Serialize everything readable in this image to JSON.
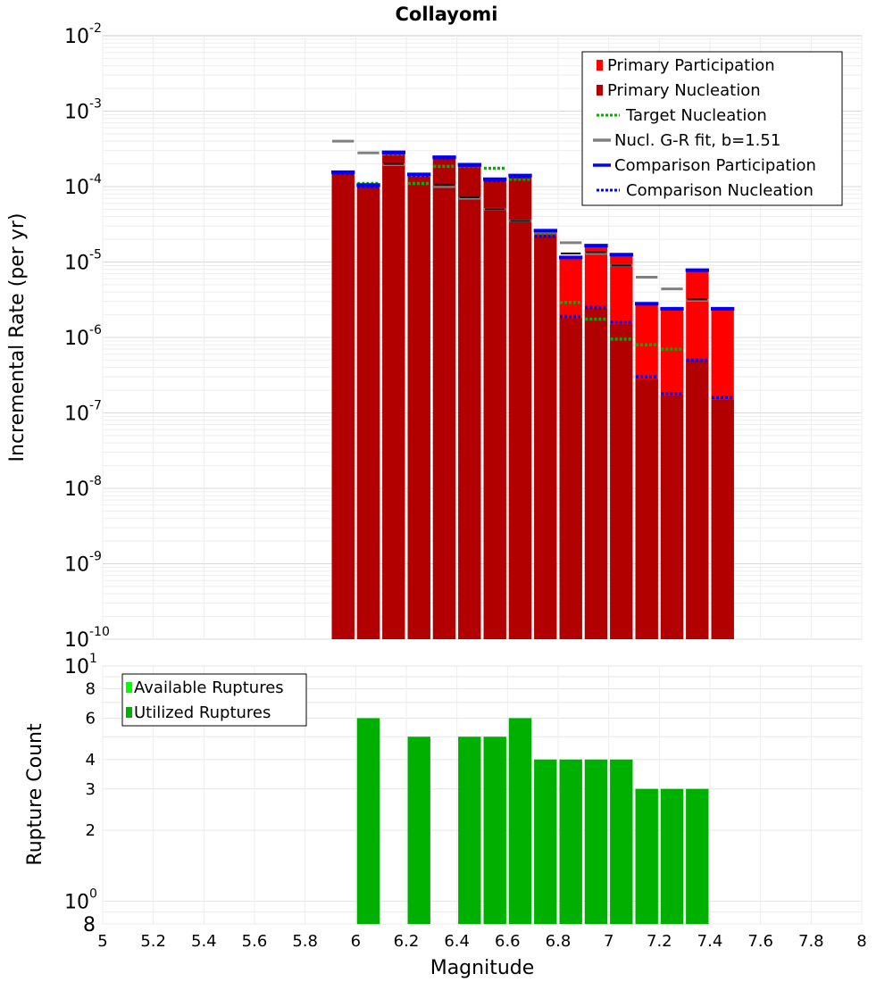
{
  "title": "Collayomi",
  "chart_data": [
    {
      "type": "bar",
      "ylabel": "Incremental Rate (per yr)",
      "xlabel": "Magnitude",
      "yscale": "log",
      "ylim": [
        1e-10,
        0.01
      ],
      "xlim": [
        5,
        8
      ],
      "y_tick_labels": [
        "10-10",
        "10-9",
        "10-8",
        "10-7",
        "10-6",
        "10-5",
        "10-4",
        "10-3",
        "10-2"
      ],
      "legend_position": "top-right",
      "bin_width": 0.1,
      "x": [
        5.95,
        6.05,
        6.15,
        6.25,
        6.35,
        6.45,
        6.55,
        6.65,
        6.75,
        6.85,
        6.95,
        7.05,
        7.15,
        7.25,
        7.35,
        7.45
      ],
      "series": [
        {
          "name": "Primary Participation",
          "style": "bar",
          "color": "#ff0000",
          "values": [
            0.00015,
            0.0001,
            0.00028,
            0.00014,
            0.00024,
            0.00019,
            0.00012,
            0.000135,
            2.5e-05,
            1.1e-05,
            1.6e-05,
            1.2e-05,
            2.7e-06,
            2.3e-06,
            7.5e-06,
            2.3e-06
          ]
        },
        {
          "name": "Primary Nucleation",
          "style": "bar",
          "color": "#b20000",
          "values": [
            0.00015,
            0.0001,
            0.00028,
            0.00014,
            0.00024,
            0.00019,
            0.00012,
            0.000135,
            2.2e-05,
            1.8e-06,
            2.4e-06,
            1.5e-06,
            2.8e-07,
            1.7e-07,
            5e-07,
            1.5e-07
          ]
        },
        {
          "name": "Target Nucleation",
          "style": "dotted",
          "color": "#00b000",
          "values": [
            0.00015,
            0.00011,
            0.00027,
            0.00011,
            0.000185,
            0.000185,
            0.000175,
            0.000125,
            2.3e-05,
            2.9e-06,
            1.75e-06,
            9.5e-07,
            8e-07,
            7e-07,
            null,
            null
          ]
        },
        {
          "name": "Nucl. G-R fit, b=1.51",
          "style": "solid",
          "color": "#808080",
          "values": [
            0.0004,
            0.00028,
            0.000195,
            0.00014,
            0.0001,
            7e-05,
            5e-05,
            3.5e-05,
            2.5e-05,
            1.8e-05,
            1.3e-05,
            9e-06,
            6.3e-06,
            4.4e-06,
            3.1e-06,
            null
          ]
        },
        {
          "name": "Comparison Participation",
          "style": "solid",
          "color": "#0000ff",
          "values": [
            0.000155,
            0.000105,
            0.000285,
            0.000145,
            0.000245,
            0.000195,
            0.000125,
            0.00014,
            2.6e-05,
            1.15e-05,
            1.65e-05,
            1.25e-05,
            2.8e-06,
            2.4e-06,
            7.8e-06,
            2.4e-06
          ]
        },
        {
          "name": "Comparison Nucleation",
          "style": "dotted",
          "color": "#0000ff",
          "values": [
            0.00015,
            0.0001,
            0.00028,
            0.00014,
            0.00024,
            0.00019,
            0.00012,
            0.000135,
            2.2e-05,
            1.9e-06,
            2.5e-06,
            1.6e-06,
            3e-07,
            1.8e-07,
            5e-07,
            1.6e-07
          ]
        }
      ],
      "nucleation_marks": [
        null,
        null,
        0.0002,
        null,
        0.000105,
        7.2e-05,
        5e-05,
        3.5e-05,
        null,
        1.3e-05,
        1.35e-05,
        9e-06,
        null,
        null,
        3.2e-06,
        null
      ]
    },
    {
      "type": "bar",
      "ylabel": "Rupture Count",
      "xlabel": "Magnitude",
      "yscale": "log",
      "ylim": [
        0.8,
        10
      ],
      "xlim": [
        5,
        8
      ],
      "x_tick_labels": [
        "5",
        "5.2",
        "5.4",
        "5.6",
        "5.8",
        "6",
        "6.2",
        "6.4",
        "6.6",
        "6.8",
        "7",
        "7.2",
        "7.4",
        "7.6",
        "7.8",
        "8"
      ],
      "y_tick_labels": [
        "8",
        "10 0",
        "2",
        "3",
        "4",
        "6",
        "8",
        "10 1"
      ],
      "legend_position": "top-left",
      "x": [
        6.05,
        6.25,
        6.45,
        6.55,
        6.65,
        6.75,
        6.85,
        6.95,
        7.05,
        7.15,
        7.25,
        7.35
      ],
      "series": [
        {
          "name": "Available Ruptures",
          "color": "#00ff00",
          "values": [
            6,
            5,
            5,
            5,
            6,
            4,
            4,
            4,
            4,
            3,
            3,
            3
          ]
        },
        {
          "name": "Utilized Ruptures",
          "color": "#00b000",
          "values": [
            6,
            5,
            5,
            5,
            6,
            4,
            4,
            4,
            4,
            3,
            3,
            3
          ]
        }
      ]
    }
  ]
}
